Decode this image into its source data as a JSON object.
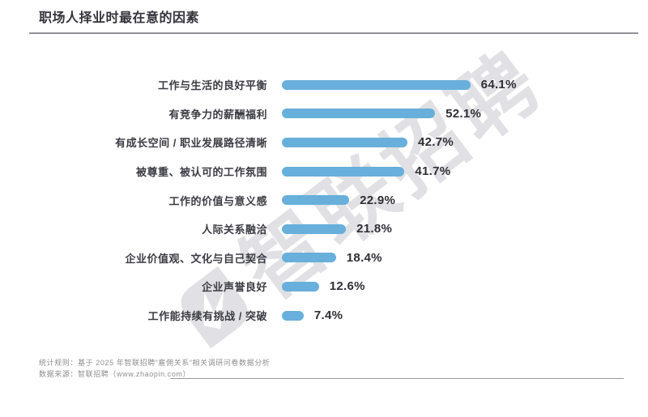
{
  "title": "职场人择业时最在意的因素",
  "watermark": {
    "text": "智联招聘"
  },
  "chart_data": {
    "type": "bar",
    "orientation": "horizontal",
    "title": "职场人择业时最在意的因素",
    "categories": [
      "工作与生活的良好平衡",
      "有竞争力的薪酬福利",
      "有成长空间 / 职业发展路径清晰",
      "被尊重、被认可的工作氛围",
      "工作的价值与意义感",
      "人际关系融洽",
      "企业价值观、文化与自己契合",
      "企业声誉良好",
      "工作能持续有挑战 / 突破"
    ],
    "values": [
      64.1,
      52.1,
      42.7,
      41.7,
      22.9,
      21.8,
      18.4,
      12.6,
      7.4
    ],
    "value_labels": [
      "64.1%",
      "52.1%",
      "42.7%",
      "41.7%",
      "22.9%",
      "21.8%",
      "18.4%",
      "12.6%",
      "7.4%"
    ],
    "xlim": [
      0,
      70
    ],
    "bar_color": "#68AFDB",
    "grid": "off",
    "legend": "none"
  },
  "footer": {
    "line1": "统计规则：基于 2025 年智联招聘“雇佣关系”相关调研问卷数据分析",
    "line2": "数据来源：智联招聘（www.zhaopin.com）"
  }
}
